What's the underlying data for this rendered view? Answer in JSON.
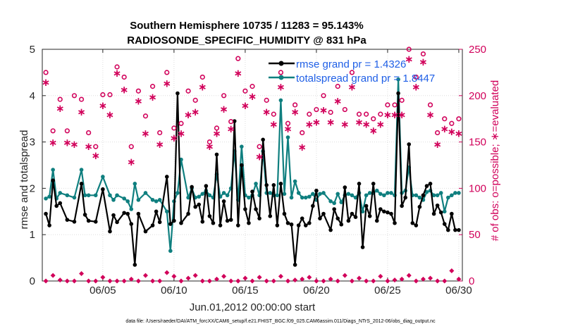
{
  "chart_data": {
    "type": "line",
    "title_line1": "Southern Hemisphere 10735 / 11283 = 95.143%",
    "title_line2": "RADIOSONDE_SPECIFIC_HUMIDITY @ 831 hPa",
    "xlabel": "Jun.01,2012 00:00:00 start",
    "ylabel": "rmse and totalspread",
    "y2label": "# of obs: o=possible; ∗=evaluated",
    "xlim": [
      0.75,
      30.25
    ],
    "ylim": [
      0,
      5
    ],
    "y2lim": [
      0,
      250
    ],
    "x_ticks": [
      5,
      10,
      15,
      20,
      25,
      30
    ],
    "x_tick_labels": [
      "06/05",
      "06/10",
      "06/15",
      "06/20",
      "06/25",
      "06/30"
    ],
    "y_ticks": [
      0,
      1,
      2,
      3,
      4,
      5
    ],
    "y_tick_labels": [
      "0",
      "1",
      "2",
      "3",
      "4",
      "5"
    ],
    "y2_ticks": [
      0,
      50,
      100,
      150,
      200,
      250
    ],
    "y2_tick_labels": [
      "0",
      "50",
      "100",
      "150",
      "200",
      "250"
    ],
    "footer": "data file: /Users/raeder/DAI/ATM_forcXX/CAM6_setup/f.e21.FHIST_BGC.f09_025.CAM6assim.011/Diags_NTrS_2012-06/obs_diag_output.nc",
    "colors": {
      "rmse": "#000000",
      "spread": "#0f7f7f",
      "obs": "#d1005a",
      "legend_text": "#1f5fe6"
    },
    "series": [
      {
        "name": "rmse grand pr = 1.4326",
        "x": [
          1.0,
          1.25,
          1.5,
          1.75,
          2.0,
          2.5,
          3.0,
          3.5,
          3.75,
          4.0,
          4.5,
          5.0,
          5.5,
          5.75,
          6.0,
          6.5,
          6.75,
          7.0,
          7.25,
          7.5,
          8.0,
          8.5,
          8.75,
          9.0,
          9.5,
          9.75,
          10.0,
          10.25,
          10.5,
          11.0,
          11.25,
          11.5,
          11.75,
          12.0,
          12.25,
          12.5,
          12.75,
          13.0,
          13.25,
          13.5,
          13.75,
          14.0,
          14.25,
          14.5,
          14.75,
          15.0,
          15.25,
          15.5,
          15.75,
          16.0,
          16.25,
          16.5,
          16.75,
          17.0,
          17.25,
          17.5,
          17.75,
          18.0,
          18.25,
          18.5,
          18.75,
          19.0,
          19.25,
          19.5,
          19.75,
          20.0,
          20.25,
          20.5,
          21.0,
          21.25,
          21.5,
          21.75,
          22.0,
          22.25,
          22.5,
          22.75,
          23.0,
          23.25,
          23.5,
          23.75,
          24.0,
          24.25,
          24.5,
          24.75,
          25.0,
          25.25,
          25.5,
          25.75,
          26.0,
          26.25,
          26.5,
          26.75,
          27.0,
          27.25,
          27.5,
          27.75,
          28.0,
          28.25,
          28.5,
          28.75,
          29.0,
          29.25,
          29.5,
          29.75,
          30.0
        ],
        "values": [
          1.45,
          1.2,
          2.17,
          1.62,
          1.68,
          1.32,
          1.28,
          2.1,
          1.43,
          1.3,
          1.28,
          1.98,
          1.07,
          1.42,
          1.27,
          1.47,
          1.45,
          1.23,
          0.35,
          1.45,
          1.07,
          1.2,
          1.5,
          1.27,
          2.25,
          1.23,
          1.3,
          4.05,
          1.25,
          1.45,
          2.03,
          1.6,
          1.65,
          1.28,
          2.05,
          1.4,
          1.25,
          2.73,
          1.2,
          1.72,
          1.3,
          1.32,
          3.45,
          1.2,
          2.5,
          1.55,
          1.25,
          1.93,
          1.55,
          1.35,
          3.05,
          2.07,
          1.4,
          2.07,
          1.2,
          2.1,
          1.45,
          1.25,
          1.22,
          0.35,
          1.2,
          1.35,
          1.2,
          1.25,
          1.62,
          1.95,
          1.35,
          1.45,
          1.1,
          1.55,
          1.35,
          1.22,
          2.02,
          1.3,
          1.45,
          1.38,
          2.1,
          0.73,
          1.62,
          1.4,
          2.1,
          1.3,
          1.55,
          1.5,
          1.48,
          1.45,
          1.25,
          4.05,
          1.62,
          1.8,
          2.95,
          1.25,
          1.2,
          1.6,
          1.85,
          2.05,
          2.1,
          1.45,
          1.63,
          1.48,
          1.23,
          1.1,
          1.45,
          1.1,
          1.1
        ],
        "color": "#000000"
      },
      {
        "name": "totalspread grand pr = 1.8447",
        "x": [
          1.0,
          1.25,
          1.5,
          1.75,
          2.0,
          2.5,
          3.0,
          3.5,
          3.75,
          4.0,
          4.5,
          5.0,
          5.5,
          5.75,
          6.0,
          6.5,
          6.75,
          7.0,
          7.25,
          7.5,
          8.0,
          8.5,
          8.75,
          9.0,
          9.5,
          9.75,
          10.0,
          10.25,
          10.5,
          11.0,
          11.25,
          11.5,
          11.75,
          12.0,
          12.25,
          12.5,
          12.75,
          13.0,
          13.25,
          13.5,
          13.75,
          14.0,
          14.25,
          14.5,
          14.75,
          15.0,
          15.25,
          15.5,
          15.75,
          16.0,
          16.25,
          16.5,
          16.75,
          17.0,
          17.25,
          17.5,
          17.75,
          18.0,
          18.25,
          18.5,
          18.75,
          19.0,
          19.25,
          19.5,
          19.75,
          20.0,
          20.25,
          20.5,
          21.0,
          21.25,
          21.5,
          21.75,
          22.0,
          22.25,
          22.5,
          22.75,
          23.0,
          23.25,
          23.5,
          23.75,
          24.0,
          24.25,
          24.5,
          24.75,
          25.0,
          25.25,
          25.5,
          25.75,
          26.0,
          26.25,
          26.5,
          26.75,
          27.0,
          27.25,
          27.5,
          27.75,
          28.0,
          28.25,
          28.5,
          28.75,
          29.0,
          29.25,
          29.5,
          29.75,
          30.0
        ],
        "values": [
          1.78,
          1.82,
          2.4,
          1.78,
          1.9,
          1.85,
          1.8,
          2.4,
          1.85,
          1.85,
          1.85,
          2.25,
          1.85,
          1.75,
          1.85,
          1.78,
          1.72,
          1.55,
          2.1,
          1.75,
          1.9,
          1.75,
          1.72,
          1.75,
          1.5,
          0.65,
          1.72,
          1.9,
          2.62,
          1.8,
          2.0,
          1.8,
          1.82,
          1.88,
          1.95,
          1.85,
          1.8,
          2.3,
          1.82,
          1.9,
          1.85,
          2.0,
          2.8,
          1.75,
          2.9,
          1.85,
          1.8,
          1.85,
          2.1,
          1.85,
          2.8,
          1.9,
          1.9,
          1.85,
          1.85,
          3.9,
          1.88,
          3.1,
          1.8,
          2.15,
          1.9,
          1.8,
          1.8,
          1.82,
          1.88,
          1.75,
          1.88,
          1.9,
          1.72,
          1.68,
          1.88,
          1.7,
          1.85,
          1.88,
          1.85,
          1.8,
          1.9,
          1.5,
          1.85,
          1.9,
          1.9,
          1.95,
          1.88,
          1.85,
          1.9,
          1.9,
          1.85,
          4.35,
          1.9,
          1.95,
          2.45,
          1.85,
          1.85,
          1.8,
          1.75,
          1.92,
          1.95,
          1.85,
          1.85,
          1.9,
          1.5,
          1.8,
          1.85,
          1.9,
          1.9
        ],
        "color": "#0f7f7f"
      },
      {
        "name": "possible obs count",
        "x": [
          1.0,
          1.5,
          2.0,
          2.5,
          3.0,
          3.5,
          4.0,
          4.5,
          5.0,
          5.5,
          6.0,
          6.5,
          7.0,
          7.5,
          8.0,
          8.5,
          9.0,
          9.5,
          10.0,
          10.5,
          11.0,
          11.5,
          12.0,
          12.5,
          13.0,
          13.5,
          14.0,
          14.5,
          15.0,
          15.5,
          16.0,
          16.5,
          17.0,
          17.5,
          18.0,
          18.5,
          19.0,
          19.5,
          20.0,
          20.5,
          21.0,
          21.5,
          22.0,
          22.5,
          23.0,
          23.5,
          24.0,
          24.5,
          25.0,
          25.5,
          26.0,
          26.5,
          27.0,
          27.5,
          28.0,
          28.5,
          29.0,
          29.5,
          30.0
        ],
        "values": [
          225,
          162,
          196,
          162,
          200,
          196,
          160,
          145,
          201,
          201,
          231,
          220,
          145,
          205,
          178,
          210,
          160,
          225,
          165,
          170,
          205,
          195,
          220,
          150,
          165,
          200,
          172,
          240,
          205,
          210,
          145,
          195,
          180,
          225,
          170,
          190,
          160,
          180,
          185,
          200,
          182,
          210,
          185,
          225,
          180,
          180,
          175,
          180,
          190,
          190,
          195,
          250,
          220,
          245,
          190,
          160,
          175,
          170,
          175
        ],
        "color": "#d1005a"
      },
      {
        "name": "evaluated obs count",
        "x": [
          1.0,
          1.5,
          2.0,
          2.5,
          3.0,
          3.5,
          4.0,
          4.5,
          5.0,
          5.5,
          6.0,
          6.5,
          7.0,
          7.5,
          8.0,
          8.5,
          9.0,
          9.5,
          10.0,
          10.5,
          11.0,
          11.5,
          12.0,
          12.5,
          13.0,
          13.5,
          14.0,
          14.5,
          15.0,
          15.5,
          16.0,
          16.5,
          17.0,
          17.5,
          18.0,
          18.5,
          19.0,
          19.5,
          20.0,
          20.5,
          21.0,
          21.5,
          22.0,
          22.5,
          23.0,
          23.5,
          24.0,
          24.5,
          25.0,
          25.5,
          26.0,
          26.5,
          27.0,
          27.5,
          28.0,
          28.5,
          29.0,
          29.5,
          30.0
        ],
        "values": [
          215,
          150,
          187,
          150,
          148,
          183,
          146,
          136,
          190,
          180,
          225,
          207,
          129,
          195,
          160,
          199,
          148,
          214,
          155,
          160,
          180,
          183,
          210,
          146,
          160,
          186,
          165,
          225,
          190,
          200,
          135,
          183,
          170,
          210,
          165,
          183,
          145,
          170,
          172,
          185,
          172,
          195,
          170,
          210,
          172,
          170,
          163,
          170,
          180,
          180,
          180,
          240,
          210,
          237,
          180,
          148,
          165,
          162,
          160
        ],
        "color": "#d1005a"
      }
    ],
    "bottom_obs": {
      "x": [
        1.0,
        1.5,
        2.0,
        2.5,
        3.0,
        3.5,
        4.0,
        4.5,
        5.0,
        5.5,
        6.0,
        6.5,
        7.0,
        7.5,
        8.0,
        8.5,
        9.0,
        9.5,
        10.0,
        10.5,
        11.0,
        11.5,
        12.0,
        12.5,
        13.0,
        13.5,
        14.0,
        14.5,
        15.0,
        15.5,
        16.0,
        16.5,
        17.0,
        17.5,
        18.0,
        18.5,
        19.0,
        19.5,
        20.0,
        20.5,
        21.0,
        21.5,
        22.0,
        22.5,
        23.0,
        23.5,
        24.0,
        24.5,
        25.0,
        25.5,
        26.0,
        26.5,
        27.0,
        27.5,
        28.0,
        28.5,
        29.0,
        29.5,
        30.0
      ],
      "values": [
        0,
        6,
        1,
        0,
        0,
        8,
        0,
        0,
        4,
        0,
        0,
        0,
        2,
        0,
        6,
        0,
        0,
        9,
        5,
        0,
        3,
        6,
        0,
        0,
        2,
        5,
        0,
        0,
        3,
        0,
        4,
        0,
        0,
        5,
        0,
        1,
        2,
        4,
        0,
        0,
        2,
        0,
        6,
        0,
        3,
        0,
        0,
        5,
        0,
        1,
        2,
        6,
        0,
        2,
        3,
        0,
        0,
        11,
        2
      ]
    },
    "legend": {
      "position": "top-right",
      "rmse_label": "rmse grand pr = 1.4326",
      "spread_label": "totalspread grand pr = 1.8447"
    }
  }
}
